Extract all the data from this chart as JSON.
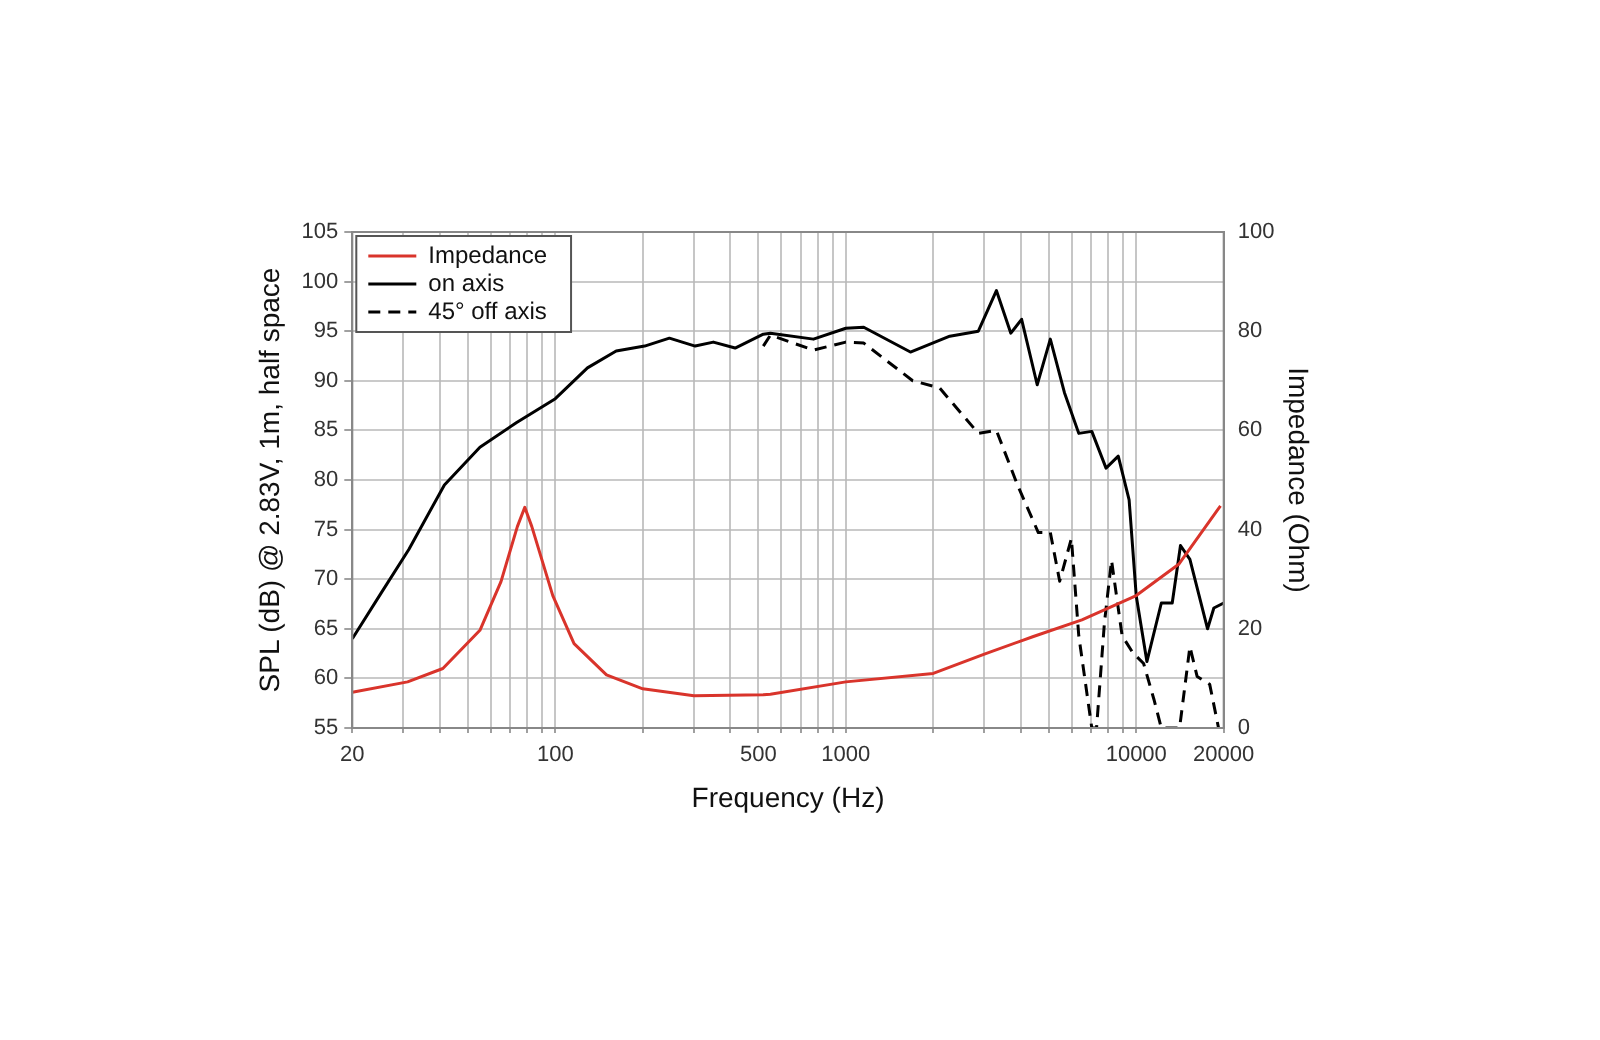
{
  "chart_data": {
    "type": "line",
    "xlabel": "Frequency (Hz)",
    "ylabel": "SPL (dB) @ 2.83V, 1m, half space",
    "y2label": "Impedance (Ohm)",
    "log": "x",
    "grid": true,
    "legend": "top left",
    "marker": "none",
    "xlim": [
      20,
      20000
    ],
    "xticks": [
      20,
      {
        "value": 30,
        "label": null
      },
      {
        "value": 40,
        "label": null
      },
      {
        "value": 50,
        "label": null
      },
      {
        "value": 60,
        "label": null
      },
      {
        "value": 70,
        "label": null
      },
      {
        "value": 80,
        "label": null
      },
      {
        "value": 90,
        "label": null
      },
      100,
      {
        "value": 200,
        "label": null
      },
      {
        "value": 300,
        "label": null
      },
      {
        "value": 400,
        "label": null
      },
      500,
      {
        "value": 600,
        "label": null
      },
      {
        "value": 700,
        "label": null
      },
      {
        "value": 800,
        "label": null
      },
      {
        "value": 900,
        "label": null
      },
      1000,
      {
        "value": 2000,
        "label": null
      },
      {
        "value": 3000,
        "label": null
      },
      {
        "value": 4000,
        "label": null
      },
      {
        "value": 5000,
        "label": null
      },
      {
        "value": 6000,
        "label": null
      },
      {
        "value": 7000,
        "label": null
      },
      {
        "value": 8000,
        "label": null
      },
      {
        "value": 9000,
        "label": null
      },
      10000,
      20000
    ],
    "ylim": [
      55,
      105
    ],
    "yticks": [
      55,
      60,
      65,
      70,
      75,
      80,
      85,
      90,
      95,
      100,
      105
    ],
    "y2lim": [
      0,
      100
    ],
    "y2ticks": [
      0,
      20,
      40,
      60,
      80,
      100
    ],
    "series": [
      {
        "name": "Impedance",
        "color": "#d9342b",
        "axis": "y2",
        "line_style": "solid",
        "x": [
          20,
          31,
          41,
          55,
          65,
          74,
          78.5,
          83,
          98,
          116,
          150,
          200,
          300,
          520,
          550,
          1000,
          2000,
          3000,
          4400,
          6500,
          10000,
          14000,
          19500
        ],
        "values": [
          7.2,
          9.3,
          12,
          19.7,
          29.5,
          40.6,
          44.5,
          40.6,
          26.7,
          17,
          10.7,
          7.9,
          6.5,
          6.7,
          6.8,
          9.3,
          11,
          14.9,
          18.4,
          21.8,
          26.7,
          33,
          44.8
        ]
      },
      {
        "name": "on axis",
        "color": "#000000",
        "line_style": "solid",
        "x": [
          20,
          25,
          31.3,
          41.5,
          55,
          73.6,
          100,
          129,
          162,
          203,
          247,
          303,
          350,
          416,
          520,
          550,
          774,
          1000,
          1153,
          1669,
          2280,
          2860,
          3300,
          3700,
          4030,
          4560,
          5060,
          5660,
          6340,
          7030,
          7870,
          8670,
          9450,
          10000,
          10880,
          12200,
          13300,
          14200,
          15300,
          17600,
          18500,
          20000
        ],
        "values": [
          64,
          68.5,
          73,
          79.5,
          83.3,
          85.8,
          88.2,
          91.3,
          93,
          93.5,
          94.3,
          93.5,
          93.9,
          93.3,
          94.7,
          94.8,
          94.2,
          95.3,
          95.4,
          92.9,
          94.5,
          95,
          99.1,
          94.8,
          96.2,
          89.6,
          94.2,
          88.8,
          84.7,
          84.9,
          81.2,
          82.4,
          78,
          68.3,
          61.7,
          67.6,
          67.6,
          73.4,
          72,
          65,
          67.1,
          67.6
        ]
      },
      {
        "name": "45° off axis",
        "color": "#000000",
        "line_style": "dashed",
        "x": [
          520,
          550,
          774,
          1000,
          1153,
          1700,
          2100,
          2860,
          3300,
          3900,
          4600,
          5060,
          5450,
          5980,
          6340,
          7030,
          7300,
          7770,
          8220,
          8940,
          9720,
          10600,
          11500,
          12200,
          14100,
          15300,
          16200,
          17900,
          19200
        ],
        "values": [
          93.5,
          94.6,
          93.1,
          93.9,
          93.8,
          90,
          89.3,
          84.7,
          85,
          79.5,
          74.7,
          74.7,
          69.8,
          74.1,
          64.3,
          55,
          55,
          65.6,
          71.9,
          64.3,
          62.6,
          61.5,
          57.9,
          55,
          55,
          63.2,
          60.2,
          59.4,
          55
        ]
      }
    ]
  }
}
